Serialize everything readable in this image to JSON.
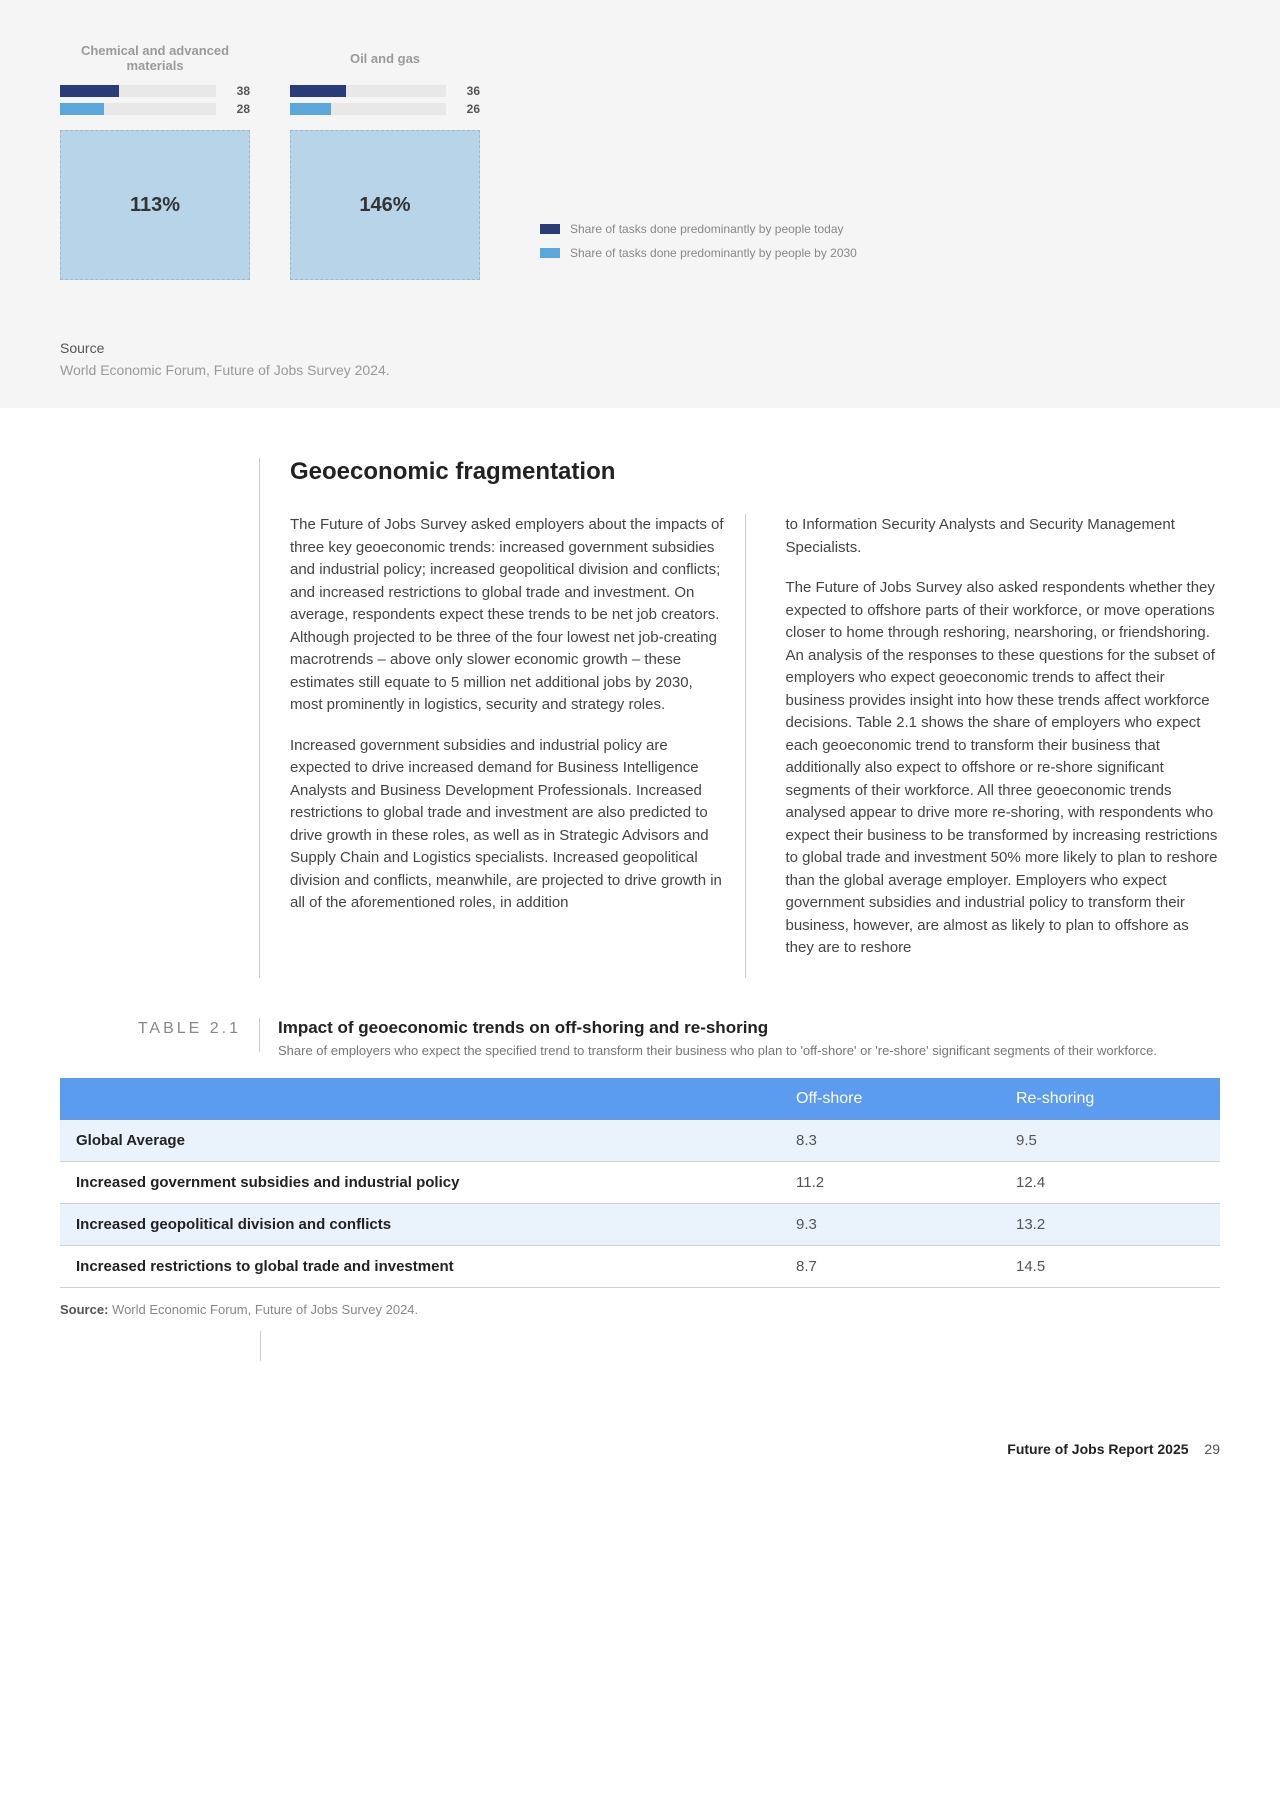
{
  "chart": {
    "panels": [
      {
        "title": "Chemical and advanced materials",
        "bar1": 38,
        "bar2": 28,
        "bar1_pct": 38,
        "bar2_pct": 28,
        "big": "113%"
      },
      {
        "title": "Oil and gas",
        "bar1": 36,
        "bar2": 26,
        "bar1_pct": 36,
        "bar2_pct": 26,
        "big": "146%"
      }
    ],
    "colors": {
      "bar1": "#2a3b7a",
      "bar2": "#5aa6dd",
      "track": "#e8e8e8",
      "box_border": "#9bb8cc",
      "box_fill": "#b8d4e8"
    },
    "legend": [
      {
        "color": "#2a3b7a",
        "label": "Share of tasks done predominantly by people today"
      },
      {
        "color": "#5aa6dd",
        "label": "Share of tasks done predominantly by people by 2030"
      }
    ],
    "source_label": "Source",
    "source_text": "World Economic Forum, Future of Jobs Survey 2024."
  },
  "article": {
    "heading": "Geoeconomic fragmentation",
    "col1_p1": "The Future of Jobs Survey asked employers about the impacts of three key geoeconomic trends: increased government subsidies and industrial policy; increased geopolitical division and conflicts; and increased restrictions to global trade and investment. On average, respondents expect these trends to be net job creators. Although projected to be three of the four lowest net job-creating macrotrends – above only slower economic growth – these estimates still equate to 5 million net additional jobs by 2030, most prominently in logistics, security and strategy roles.",
    "col1_p2": "Increased government subsidies and industrial policy are expected to drive increased demand for Business Intelligence Analysts and Business Development Professionals. Increased restrictions to global trade and investment are also predicted to drive growth in these roles, as well as in Strategic Advisors and Supply Chain and Logistics specialists. Increased geopolitical division and conflicts, meanwhile, are projected to drive growth in all of the aforementioned roles, in addition",
    "col2_p1": "to Information Security Analysts and Security Management Specialists.",
    "col2_p2": "The Future of Jobs Survey also asked respondents whether they expected to offshore parts of their workforce, or move operations closer to home through reshoring, nearshoring, or friendshoring. An analysis of the responses to these questions for the subset of employers who expect geoeconomic trends to affect their business provides insight into how these trends affect workforce decisions. Table 2.1 shows the share of employers who expect each geoeconomic trend to transform their business that additionally also expect to offshore or re-shore significant segments of their workforce. All three geoeconomic trends analysed appear to drive more re-shoring, with respondents who expect their business to be transformed by increasing restrictions to global trade and investment 50% more likely to plan to reshore than the global average employer. Employers who expect government subsidies and industrial policy to transform their business, however, are almost as likely to plan to offshore as they are to reshore"
  },
  "table": {
    "number": "TABLE 2.1",
    "title": "Impact of geoeconomic trends on off-shoring and re-shoring",
    "subtitle": "Share of employers who expect the specified trend to transform their business who plan to 'off-shore' or 're-shore' significant segments of their workforce.",
    "headers": {
      "c1": "Off-shore",
      "c2": "Re-shoring"
    },
    "rows": [
      {
        "label": "Global Average",
        "c1": "8.3",
        "c2": "9.5",
        "highlight": true
      },
      {
        "label": "Increased government subsidies and industrial policy",
        "c1": "11.2",
        "c2": "12.4",
        "highlight": false
      },
      {
        "label": "Increased geopolitical division and conflicts",
        "c1": "9.3",
        "c2": "13.2",
        "highlight": true
      },
      {
        "label": "Increased restrictions to global trade and investment",
        "c1": "8.7",
        "c2": "14.5",
        "highlight": false
      }
    ],
    "source_label": "Source:",
    "source_text": "World Economic Forum, Future of Jobs Survey 2024.",
    "header_bg": "#5b9bf0",
    "highlight_bg": "#eaf2fb"
  },
  "footer": {
    "title": "Future of Jobs Report 2025",
    "page": "29"
  }
}
